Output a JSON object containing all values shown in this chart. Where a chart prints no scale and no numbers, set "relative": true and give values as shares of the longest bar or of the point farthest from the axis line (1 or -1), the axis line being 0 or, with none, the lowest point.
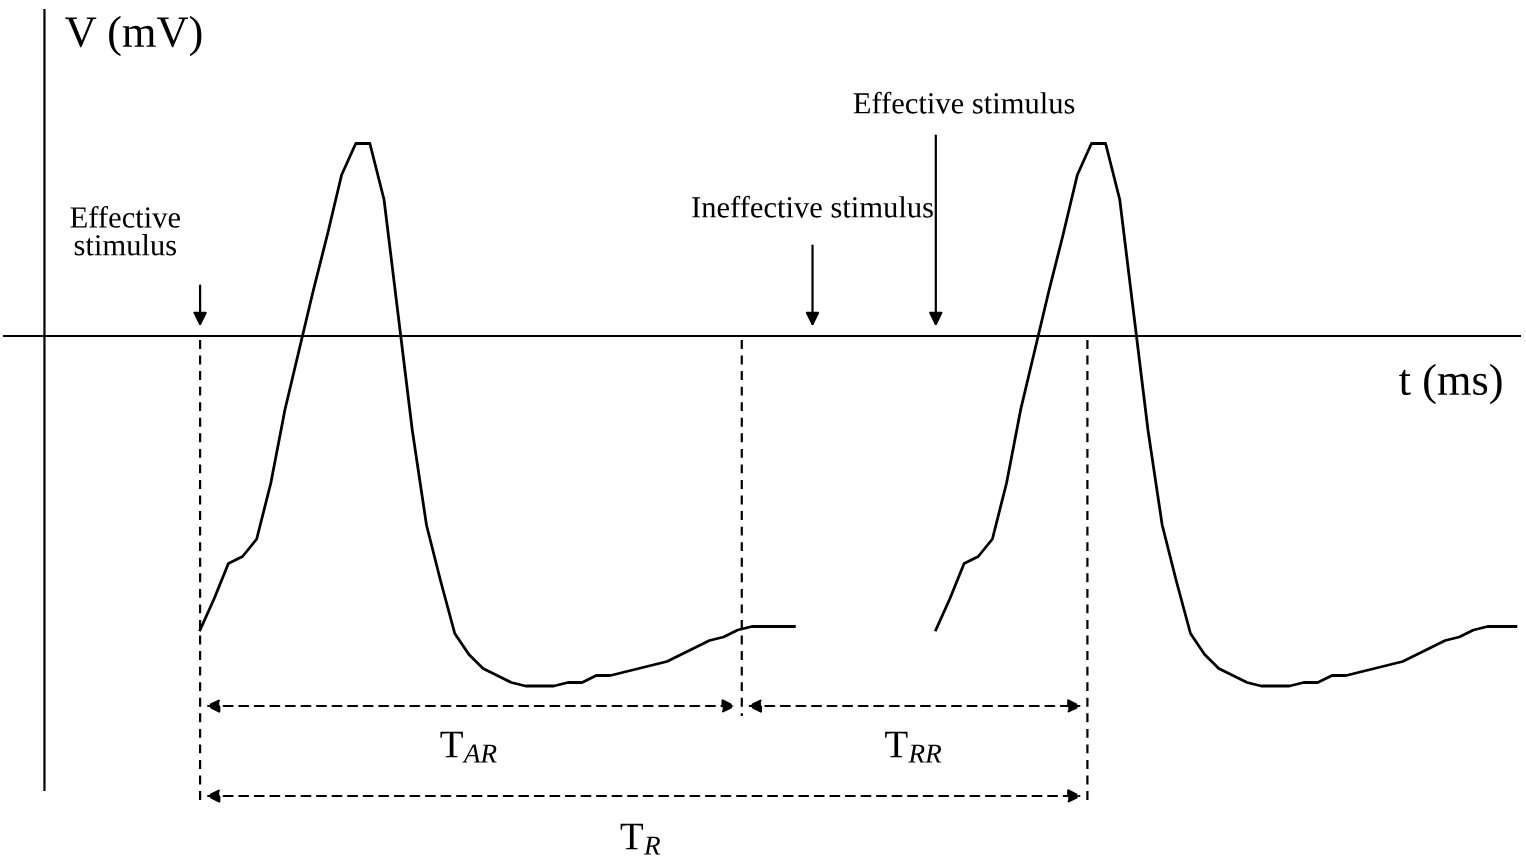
{
  "chart_data": {
    "type": "line",
    "relative": true,
    "xlabel": "t (ms)",
    "ylabel": "V (mV)",
    "categories": [
      null,
      null,
      null,
      null,
      null,
      null,
      null,
      null,
      null,
      null,
      null,
      null,
      null,
      null,
      null,
      null,
      null,
      null,
      null,
      null,
      null,
      null,
      null,
      null,
      null,
      null,
      null,
      null,
      null,
      null,
      null,
      null,
      null,
      null,
      null,
      null,
      null,
      null,
      null,
      null,
      null,
      null,
      null,
      null,
      null,
      null,
      null,
      null,
      null,
      null,
      null,
      null,
      null,
      null,
      null,
      null,
      null,
      null,
      null,
      null,
      null,
      null,
      null,
      null,
      null,
      null,
      null,
      null,
      null,
      null,
      null,
      null,
      null,
      null,
      null,
      null,
      null,
      null,
      null,
      null,
      null,
      null,
      null,
      null,
      null,
      null,
      null,
      null,
      null,
      null,
      null,
      null,
      null,
      null
    ],
    "series": [
      {
        "color": "#000000",
        "values": [
          -0.84,
          -0.75,
          -0.65,
          -0.63,
          -0.58,
          -0.42,
          -0.21,
          -0.04,
          0.13,
          0.29,
          0.46,
          0.55,
          0.55,
          0.39,
          0.06,
          -0.27,
          -0.54,
          -0.7,
          -0.85,
          -0.91,
          -0.95,
          -0.97,
          -0.99,
          -1,
          -1,
          -1,
          -0.99,
          -0.99,
          -0.97,
          -0.97,
          -0.96,
          -0.95,
          -0.94,
          -0.93,
          -0.91,
          -0.89,
          -0.87,
          -0.86,
          -0.84,
          -0.83,
          -0.83,
          -0.83,
          -0.83,
          null,
          null,
          null,
          null,
          null,
          null,
          null,
          null,
          null,
          null,
          null,
          null,
          null,
          null,
          null,
          null,
          null,
          null,
          null,
          null,
          null,
          null,
          null,
          null,
          null,
          null,
          null,
          null,
          null,
          null,
          null,
          null,
          null,
          null,
          null,
          null,
          null,
          null,
          null,
          null,
          null,
          null,
          null,
          null,
          null,
          null,
          null,
          null,
          null,
          null,
          null
        ]
      },
      {
        "color": "#000000",
        "values": [
          null,
          null,
          null,
          null,
          null,
          null,
          null,
          null,
          null,
          null,
          null,
          null,
          null,
          null,
          null,
          null,
          null,
          null,
          null,
          null,
          null,
          null,
          null,
          null,
          null,
          null,
          null,
          null,
          null,
          null,
          null,
          null,
          null,
          null,
          null,
          null,
          null,
          null,
          null,
          null,
          null,
          null,
          null,
          null,
          null,
          null,
          null,
          null,
          null,
          null,
          null,
          null,
          -0.84,
          -0.75,
          -0.65,
          -0.63,
          -0.58,
          -0.42,
          -0.21,
          -0.04,
          0.13,
          0.29,
          0.46,
          0.55,
          0.55,
          0.39,
          0.06,
          -0.27,
          -0.54,
          -0.7,
          -0.85,
          -0.91,
          -0.95,
          -0.97,
          -0.99,
          -1,
          -1,
          -1,
          -0.99,
          -0.99,
          -0.97,
          -0.97,
          -0.96,
          -0.95,
          -0.94,
          -0.93,
          -0.91,
          -0.89,
          -0.87,
          -0.86,
          -0.84,
          -0.83,
          -0.83,
          -0.83
        ]
      }
    ],
    "annotations": [
      "Effective\nstimulus",
      "Ineffective stimulus",
      "Effective stimulus",
      "T$_{AR}$",
      "T$_{RR}$",
      "T$_{R}$"
    ]
  }
}
